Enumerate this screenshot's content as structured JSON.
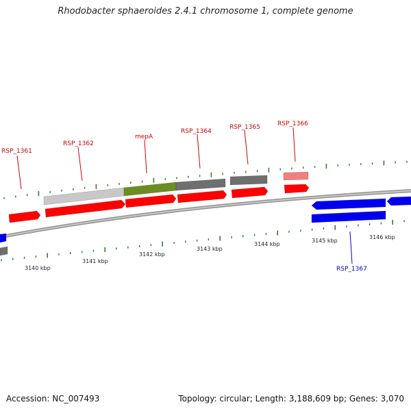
{
  "title": "Rhodobacter sphaeroides 2.4.1 chromosome 1, complete genome",
  "footer": {
    "accession": "Accession: NC_007493",
    "summary": "Topology: circular; Length: 3,188,609 bp; Genes: 3,070"
  },
  "colors": {
    "forward_cds": "#ff0000",
    "reverse_cds": "#0000ee",
    "gene_light": "#c8c8c8",
    "gene_green": "#6b8e23",
    "gene_dark": "#6f6f6f",
    "gene_pink": "#f08080",
    "tick": "#2e7d32",
    "backbone": "#888888",
    "forward_label": "#cc0000",
    "reverse_label": "#0000cc"
  },
  "scale_labels": [
    "3140 kbp",
    "3141 kbp",
    "3142 kbp",
    "3143 kbp",
    "3144 kbp",
    "3145 kbp",
    "3146 kbp"
  ],
  "gene_labels": [
    {
      "label": "RSP_1361",
      "strand": "forward"
    },
    {
      "label": "RSP_1362",
      "strand": "forward"
    },
    {
      "label": "mepA",
      "strand": "forward"
    },
    {
      "label": "RSP_1364",
      "strand": "forward"
    },
    {
      "label": "RSP_1365",
      "strand": "forward"
    },
    {
      "label": "RSP_1366",
      "strand": "forward"
    },
    {
      "label": "RSP_1367",
      "strand": "reverse"
    }
  ]
}
